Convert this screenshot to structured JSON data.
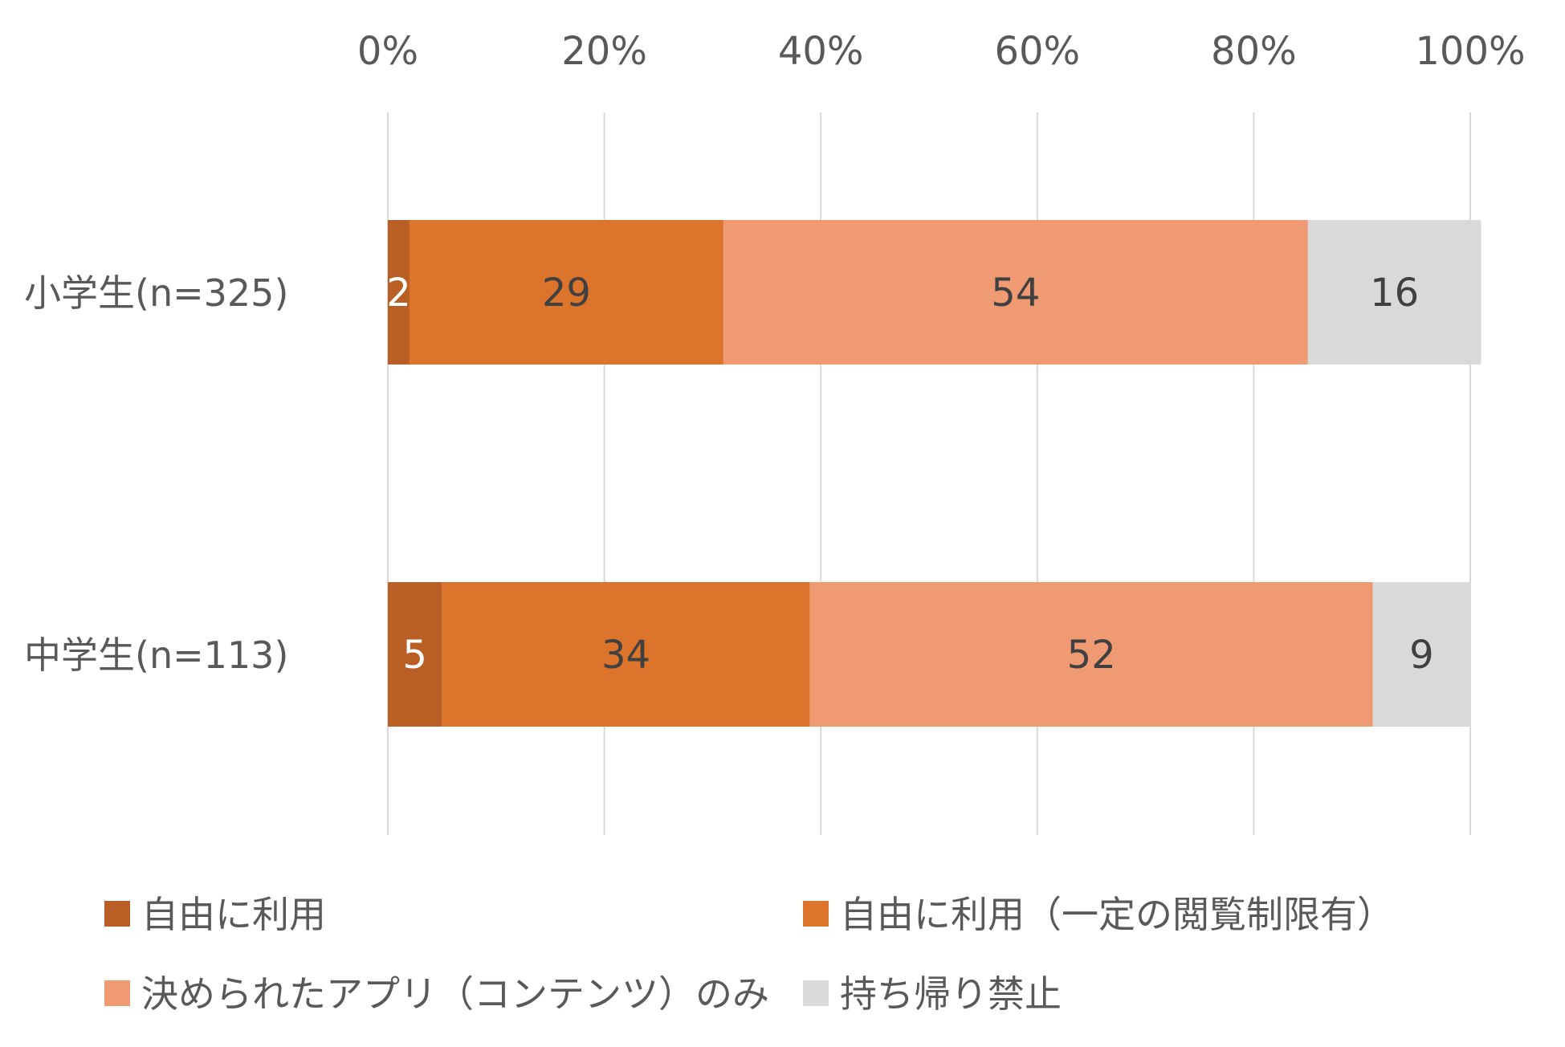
{
  "chart_data": {
    "type": "bar",
    "orientation": "horizontal",
    "stacked": "percent",
    "title": "",
    "xlabel": "",
    "ylabel": "",
    "xlim": [
      0,
      100
    ],
    "x_ticks": [
      "0%",
      "20%",
      "40%",
      "60%",
      "80%",
      "100%"
    ],
    "categories": [
      "小学生(n=325)",
      "中学生(n=113)"
    ],
    "series": [
      {
        "name": "自由に利用",
        "values": [
          2,
          5
        ],
        "color": "#b95e24",
        "label_color": "#ffffff"
      },
      {
        "name": "自由に利用（一定の閲覧制限有）",
        "values": [
          29,
          34
        ],
        "color": "#dd742c",
        "label_color": "#404040"
      },
      {
        "name": "決められたアプリ（コンテンツ）のみ",
        "values": [
          54,
          52
        ],
        "color": "#f09a73",
        "label_color": "#404040"
      },
      {
        "name": "持ち帰り禁止",
        "values": [
          16,
          9
        ],
        "color": "#d9d9d9",
        "label_color": "#404040"
      }
    ],
    "grid": true,
    "legend_position": "bottom",
    "colors": {
      "text": "#595959",
      "grid": "#d9d9d9"
    }
  }
}
